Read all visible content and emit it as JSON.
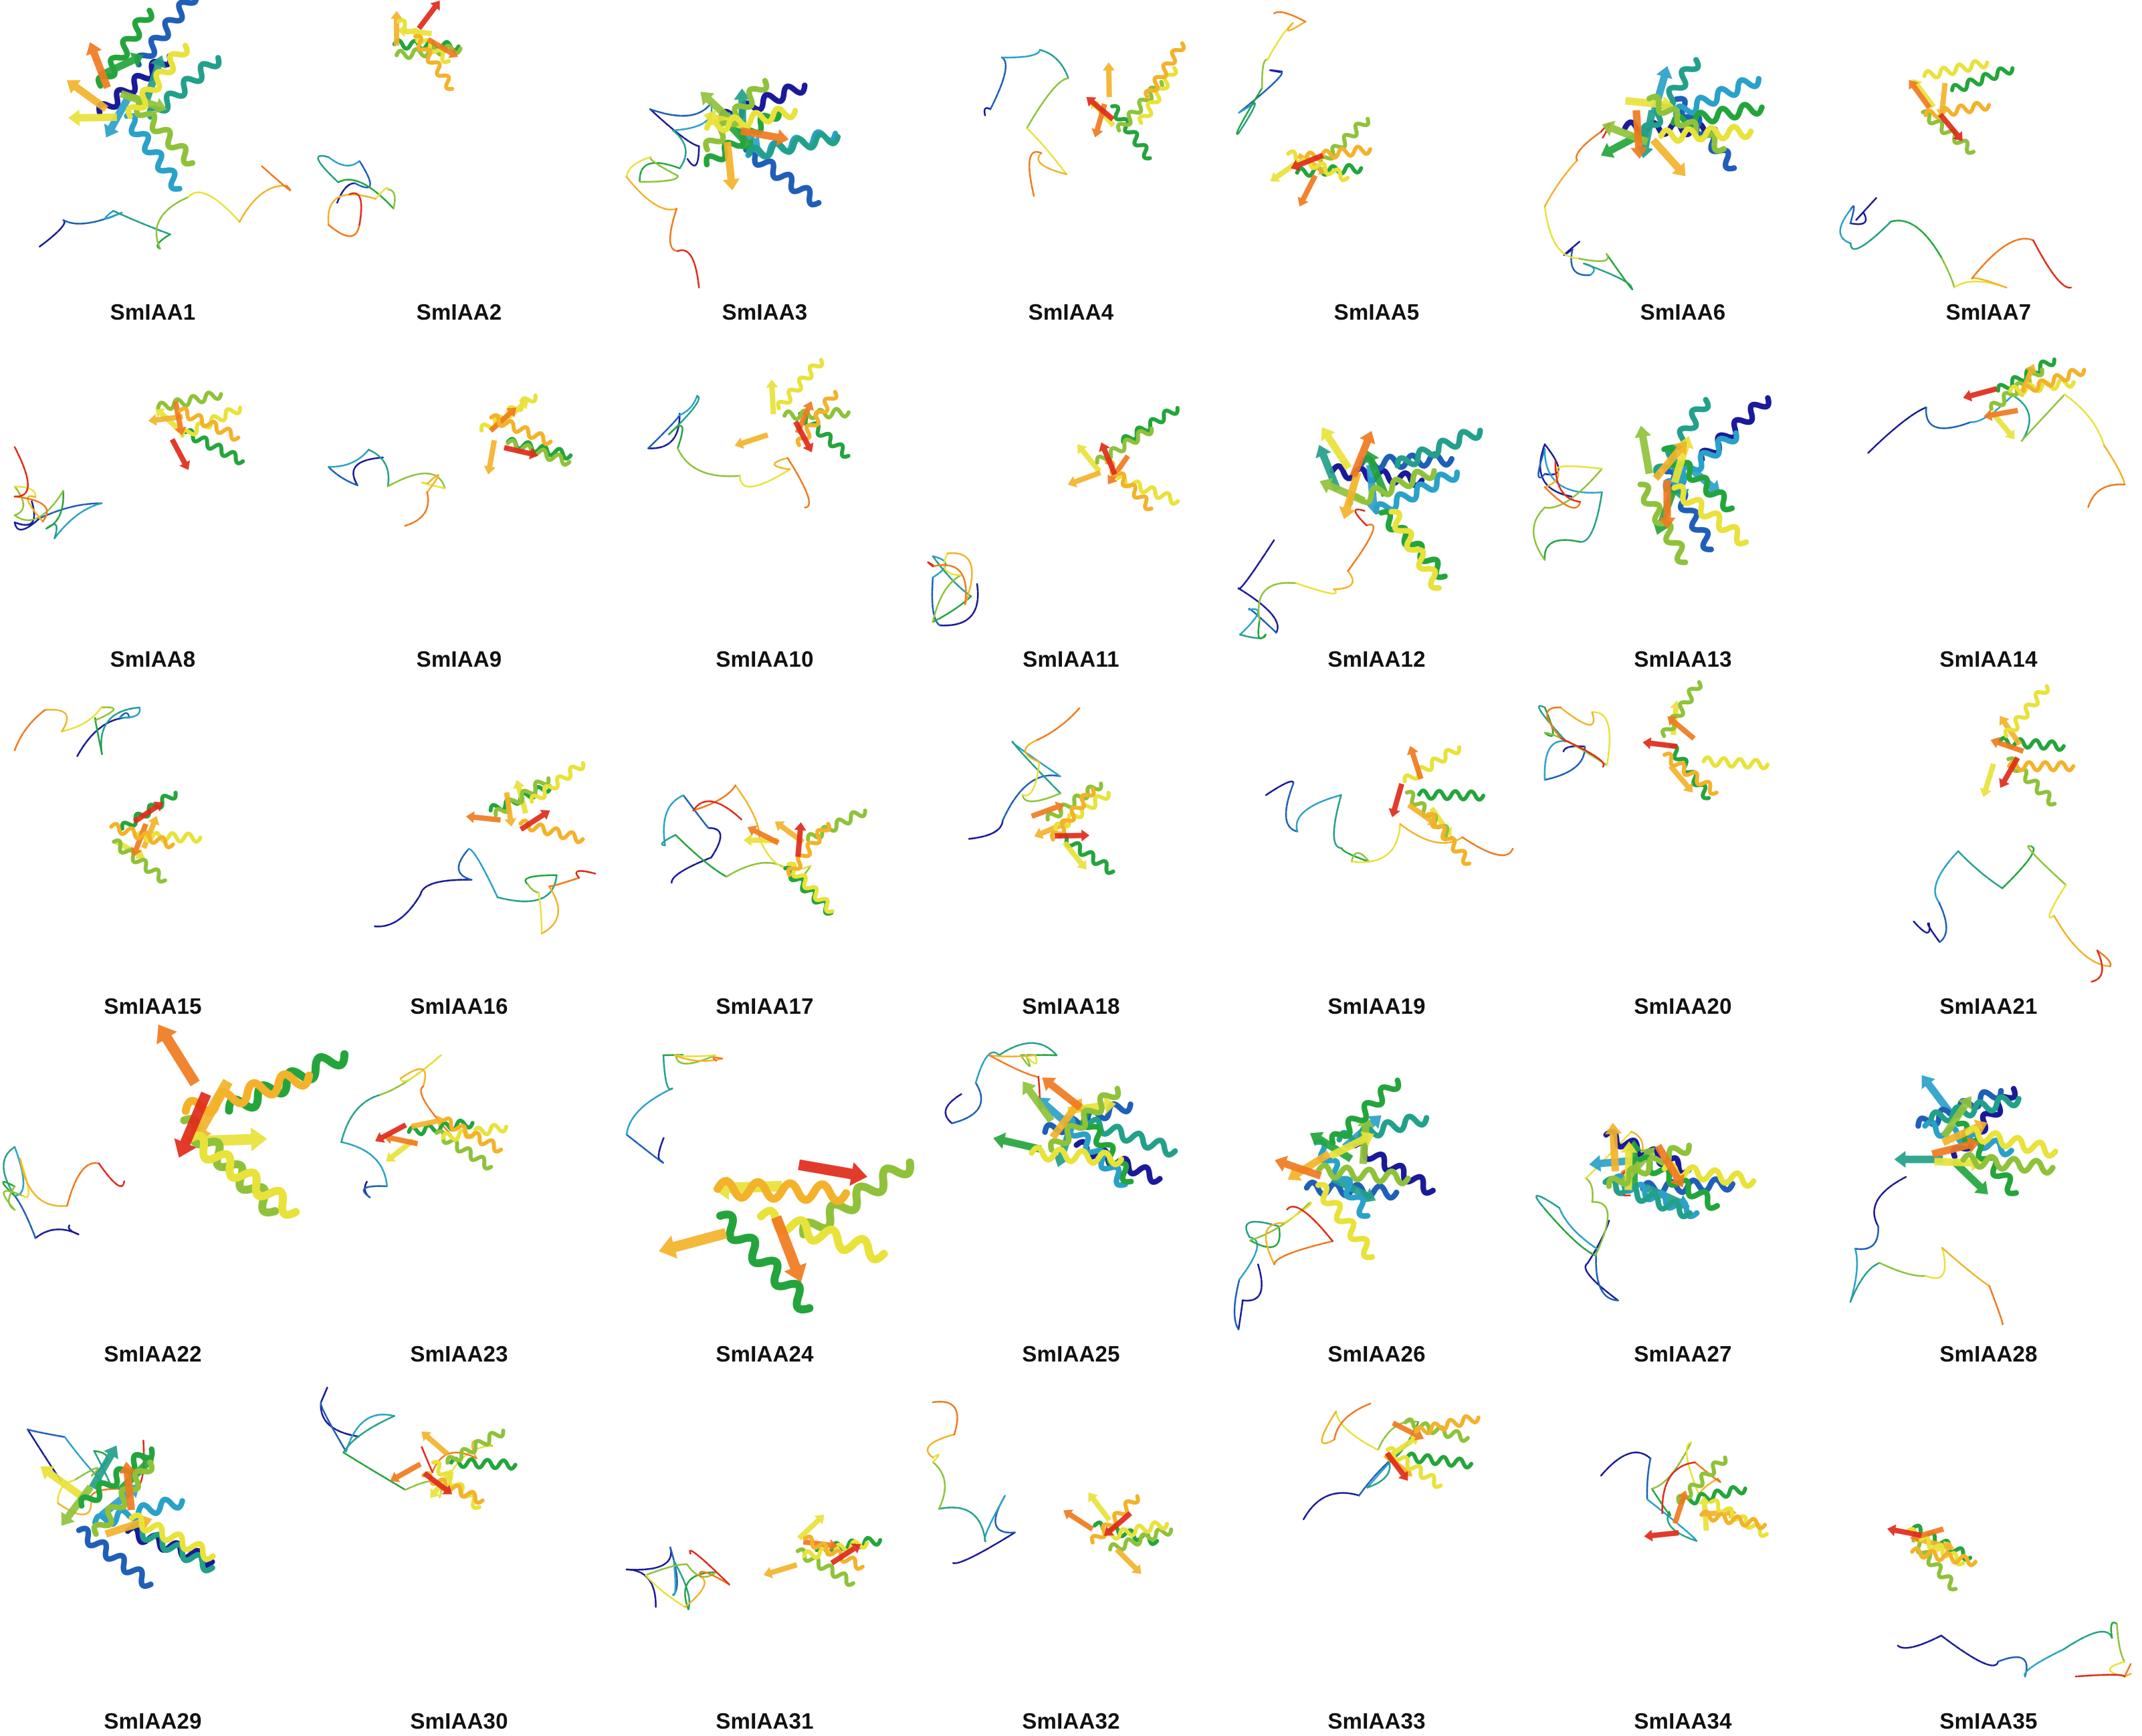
{
  "figure": {
    "background": "#ffffff",
    "palette": [
      "#1a1a9a",
      "#1f5fb8",
      "#2aa1c9",
      "#23a08a",
      "#24a53c",
      "#8fc23a",
      "#e8e23a",
      "#f3b22a",
      "#f07a1f",
      "#e02a1a"
    ],
    "panels": [
      {
        "label": "SmIAA1",
        "fold": "globular-large"
      },
      {
        "label": "SmIAA2",
        "fold": "small-domain-tail"
      },
      {
        "label": "SmIAA3",
        "fold": "globular-large"
      },
      {
        "label": "SmIAA4",
        "fold": "small-domain-tail"
      },
      {
        "label": "SmIAA5",
        "fold": "small-domain-tail"
      },
      {
        "label": "SmIAA6",
        "fold": "globular-large"
      },
      {
        "label": "SmIAA7",
        "fold": "domain-with-coil"
      },
      {
        "label": "SmIAA8",
        "fold": "small-domain-tail"
      },
      {
        "label": "SmIAA9",
        "fold": "small-domain-tail"
      },
      {
        "label": "SmIAA10",
        "fold": "domain-with-coil"
      },
      {
        "label": "SmIAA11",
        "fold": "small-domain-tail"
      },
      {
        "label": "SmIAA12",
        "fold": "globular-large"
      },
      {
        "label": "SmIAA13",
        "fold": "globular-large"
      },
      {
        "label": "SmIAA14",
        "fold": "domain-with-coil"
      },
      {
        "label": "SmIAA15",
        "fold": "domain-with-coil"
      },
      {
        "label": "SmIAA16",
        "fold": "small-domain-tail"
      },
      {
        "label": "SmIAA17",
        "fold": "small-domain-tail"
      },
      {
        "label": "SmIAA18",
        "fold": "small-domain-tail"
      },
      {
        "label": "SmIAA19",
        "fold": "small-domain-tail"
      },
      {
        "label": "SmIAA20",
        "fold": "domain-with-coil"
      },
      {
        "label": "SmIAA21",
        "fold": "small-domain-tail"
      },
      {
        "label": "SmIAA22",
        "fold": "compact-domain"
      },
      {
        "label": "SmIAA23",
        "fold": "small-domain-tail"
      },
      {
        "label": "SmIAA24",
        "fold": "compact-domain"
      },
      {
        "label": "SmIAA25",
        "fold": "globular-large"
      },
      {
        "label": "SmIAA26",
        "fold": "globular-large"
      },
      {
        "label": "SmIAA27",
        "fold": "globular-large"
      },
      {
        "label": "SmIAA28",
        "fold": "globular-large"
      },
      {
        "label": "SmIAA29",
        "fold": "globular-large"
      },
      {
        "label": "SmIAA30",
        "fold": "small-domain-tail"
      },
      {
        "label": "SmIAA31",
        "fold": "small-domain-tail"
      },
      {
        "label": "SmIAA32",
        "fold": "small-domain-tail"
      },
      {
        "label": "SmIAA33",
        "fold": "small-domain-tail"
      },
      {
        "label": "SmIAA34",
        "fold": "domain-with-coil"
      },
      {
        "label": "SmIAA35",
        "fold": "domain-with-coil"
      }
    ]
  }
}
